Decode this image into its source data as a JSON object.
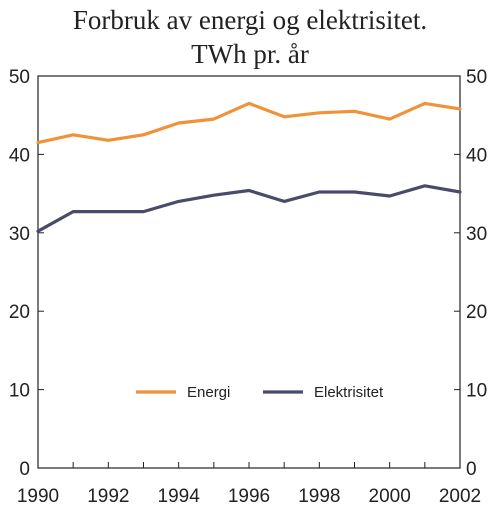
{
  "chart_data": {
    "type": "line",
    "title_lines": [
      "Forbruk av energi og elektrisitet.",
      "TWh pr. år"
    ],
    "xlabel": "",
    "ylabel": "",
    "x": [
      1990,
      1991,
      1992,
      1993,
      1994,
      1995,
      1996,
      1997,
      1998,
      1999,
      2000,
      2001,
      2002
    ],
    "xlim": [
      1990,
      2002
    ],
    "ylim": [
      0,
      50
    ],
    "x_ticks": [
      "1990",
      "1992",
      "1994",
      "1996",
      "1998",
      "2000",
      "2002"
    ],
    "y_ticks": [
      "0",
      "10",
      "20",
      "30",
      "40",
      "50"
    ],
    "grid": false,
    "legend_position": "bottom-center",
    "series": [
      {
        "name": "Energi",
        "color": "#f0923a",
        "values": [
          41.5,
          42.5,
          41.8,
          42.5,
          44.0,
          44.5,
          46.5,
          44.8,
          45.3,
          45.5,
          44.5,
          46.5,
          45.8
        ]
      },
      {
        "name": "Elektrisitet",
        "color": "#4a4a6a",
        "values": [
          30.2,
          32.7,
          32.7,
          32.7,
          34.0,
          34.8,
          35.4,
          34.0,
          35.2,
          35.2,
          34.7,
          36.0,
          35.2
        ]
      }
    ]
  }
}
